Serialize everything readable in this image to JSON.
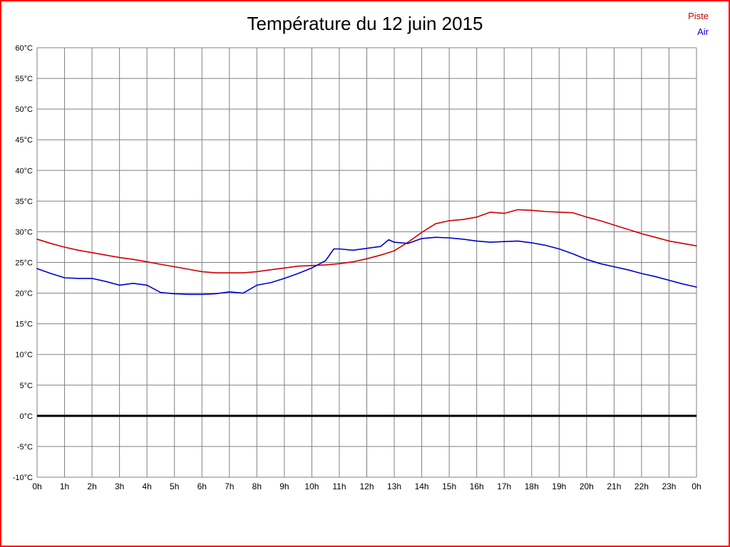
{
  "page": {
    "border_color": "#ff0000",
    "background": "#ffffff"
  },
  "chart_data": {
    "type": "line",
    "title": "Température du 12 juin 2015",
    "legend_position": "top-right",
    "grid": true,
    "grid_color": "#808080",
    "zero_line_color": "#000000",
    "x_axis": {
      "label": "",
      "unit": "h",
      "range": [
        0,
        24
      ],
      "grid_interval": 1,
      "ticks": [
        "0h",
        "1h",
        "2h",
        "3h",
        "4h",
        "5h",
        "6h",
        "7h",
        "8h",
        "9h",
        "10h",
        "11h",
        "12h",
        "13h",
        "14h",
        "15h",
        "16h",
        "17h",
        "18h",
        "19h",
        "20h",
        "21h",
        "22h",
        "23h",
        "0h"
      ]
    },
    "y_axis": {
      "label": "",
      "unit": "°C",
      "range": [
        -10,
        60
      ],
      "grid_interval": 5,
      "ticks": [
        "60°C",
        "55°C",
        "50°C",
        "45°C",
        "40°C",
        "35°C",
        "30°C",
        "25°C",
        "20°C",
        "15°C",
        "10°C",
        "5°C",
        "0°C",
        "-5°C",
        "-10°C"
      ],
      "zero_line": true
    },
    "series": [
      {
        "name": "Piste",
        "color": "#cc0000",
        "points": [
          [
            0,
            28.8
          ],
          [
            0.5,
            28.1
          ],
          [
            1,
            27.5
          ],
          [
            1.5,
            27.0
          ],
          [
            2,
            26.6
          ],
          [
            2.5,
            26.2
          ],
          [
            3,
            25.8
          ],
          [
            3.5,
            25.5
          ],
          [
            4,
            25.1
          ],
          [
            4.5,
            24.7
          ],
          [
            5,
            24.3
          ],
          [
            5.5,
            23.9
          ],
          [
            6,
            23.5
          ],
          [
            6.5,
            23.3
          ],
          [
            7,
            23.3
          ],
          [
            7.5,
            23.3
          ],
          [
            8,
            23.5
          ],
          [
            8.5,
            23.8
          ],
          [
            9,
            24.1
          ],
          [
            9.5,
            24.4
          ],
          [
            10,
            24.5
          ],
          [
            10.5,
            24.6
          ],
          [
            11,
            24.8
          ],
          [
            11.5,
            25.1
          ],
          [
            12,
            25.6
          ],
          [
            12.5,
            26.2
          ],
          [
            13,
            26.9
          ],
          [
            13.5,
            28.3
          ],
          [
            14,
            29.9
          ],
          [
            14.5,
            31.3
          ],
          [
            15,
            31.8
          ],
          [
            15.5,
            32.0
          ],
          [
            16,
            32.4
          ],
          [
            16.5,
            33.2
          ],
          [
            17,
            33.0
          ],
          [
            17.5,
            33.6
          ],
          [
            18,
            33.5
          ],
          [
            18.5,
            33.3
          ],
          [
            19,
            33.2
          ],
          [
            19.5,
            33.1
          ],
          [
            20,
            32.4
          ],
          [
            20.5,
            31.8
          ],
          [
            21,
            31.1
          ],
          [
            21.5,
            30.4
          ],
          [
            22,
            29.7
          ],
          [
            22.5,
            29.1
          ],
          [
            23,
            28.5
          ],
          [
            23.5,
            28.1
          ],
          [
            24,
            27.7
          ]
        ]
      },
      {
        "name": "Air",
        "color": "#0000cc",
        "points": [
          [
            0,
            24.0
          ],
          [
            0.5,
            23.2
          ],
          [
            1,
            22.5
          ],
          [
            1.5,
            22.4
          ],
          [
            2,
            22.4
          ],
          [
            2.5,
            21.9
          ],
          [
            3,
            21.3
          ],
          [
            3.5,
            21.6
          ],
          [
            4,
            21.3
          ],
          [
            4.5,
            20.1
          ],
          [
            5,
            19.9
          ],
          [
            5.5,
            19.8
          ],
          [
            6,
            19.8
          ],
          [
            6.5,
            19.9
          ],
          [
            7,
            20.2
          ],
          [
            7.5,
            20.0
          ],
          [
            8,
            21.3
          ],
          [
            8.5,
            21.7
          ],
          [
            9,
            22.4
          ],
          [
            9.5,
            23.2
          ],
          [
            10,
            24.1
          ],
          [
            10.5,
            25.3
          ],
          [
            10.8,
            27.2
          ],
          [
            11,
            27.2
          ],
          [
            11.5,
            27.0
          ],
          [
            12,
            27.3
          ],
          [
            12.5,
            27.6
          ],
          [
            12.8,
            28.7
          ],
          [
            13,
            28.3
          ],
          [
            13.5,
            28.1
          ],
          [
            14,
            28.9
          ],
          [
            14.5,
            29.1
          ],
          [
            15,
            29.0
          ],
          [
            15.5,
            28.8
          ],
          [
            16,
            28.5
          ],
          [
            16.5,
            28.3
          ],
          [
            17,
            28.4
          ],
          [
            17.5,
            28.5
          ],
          [
            18,
            28.2
          ],
          [
            18.5,
            27.8
          ],
          [
            19,
            27.2
          ],
          [
            19.5,
            26.4
          ],
          [
            20,
            25.5
          ],
          [
            20.5,
            24.8
          ],
          [
            21,
            24.3
          ],
          [
            21.5,
            23.8
          ],
          [
            22,
            23.2
          ],
          [
            22.5,
            22.7
          ],
          [
            23,
            22.1
          ],
          [
            23.5,
            21.5
          ],
          [
            24,
            21.0
          ]
        ]
      }
    ]
  }
}
